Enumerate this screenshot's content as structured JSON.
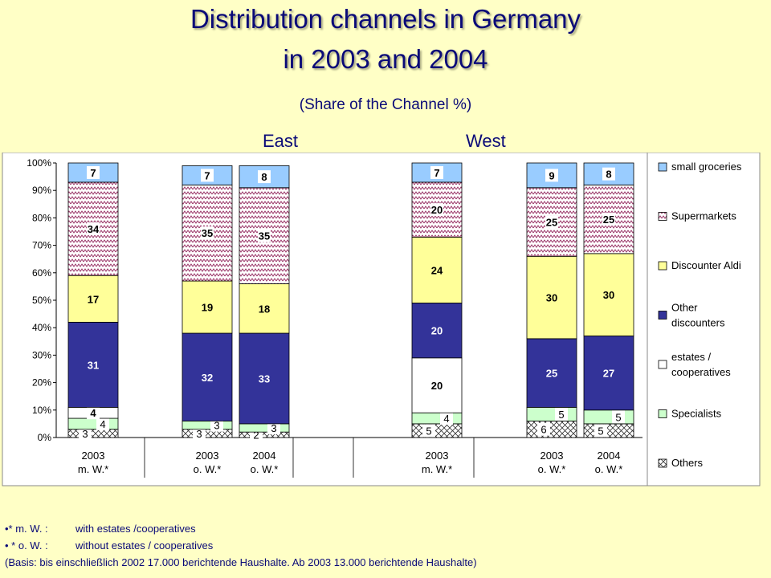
{
  "title_line1": "Distribution channels in Germany",
  "title_line2": "in 2003 and 2004",
  "subtitle": "(Share of the Channel %)",
  "region_east": "East",
  "region_west": "West",
  "notes": [
    {
      "key": "•* m. W. :",
      "text": "with estates /cooperatives"
    },
    {
      "key": "• * o. W.  :",
      "text": "without estates / cooperatives"
    }
  ],
  "basis_note": "(Basis: bis einschließlich 2002 17.000 berichtende Haushalte. Ab 2003 13.000 berichtende Haushalte)",
  "chart_data": {
    "type": "bar",
    "stacked": true,
    "ylim": [
      0,
      100
    ],
    "yticks": [
      "0%",
      "10%",
      "20%",
      "30%",
      "40%",
      "50%",
      "60%",
      "70%",
      "80%",
      "90%",
      "100%"
    ],
    "categories": [
      {
        "year": "2003",
        "sub": "m. W.*"
      },
      {
        "year": "2003",
        "sub": "o. W.*"
      },
      {
        "year": "2004",
        "sub": "o. W.*"
      },
      {
        "year": "2003",
        "sub": "m. W.*"
      },
      {
        "year": "2003",
        "sub": "o. W.*"
      },
      {
        "year": "2004",
        "sub": "o. W.*"
      }
    ],
    "series": [
      {
        "name": "Others",
        "values": [
          3,
          3,
          2,
          5,
          6,
          5
        ],
        "color": "#FFFFFF",
        "pattern": "hatch"
      },
      {
        "name": "Specialists",
        "values": [
          4,
          3,
          3,
          4,
          5,
          5
        ],
        "color": "#CCFFCC"
      },
      {
        "name": "estates / cooperatives",
        "values": [
          4,
          0,
          0,
          20,
          0,
          0
        ],
        "color": "#FFFFFF"
      },
      {
        "name": "Other discounters",
        "values": [
          31,
          32,
          33,
          20,
          25,
          27
        ],
        "color": "#333399"
      },
      {
        "name": "Discounter Aldi",
        "values": [
          17,
          19,
          18,
          24,
          30,
          30
        ],
        "color": "#FFFF99"
      },
      {
        "name": "Supermarkets",
        "values": [
          34,
          35,
          35,
          20,
          25,
          25
        ],
        "color": "#FFFFFF",
        "pattern": "wave"
      },
      {
        "name": "small groceries",
        "values": [
          7,
          7,
          8,
          7,
          9,
          8
        ],
        "color": "#99CCFF"
      }
    ],
    "legend_position": "right",
    "grid": false
  }
}
